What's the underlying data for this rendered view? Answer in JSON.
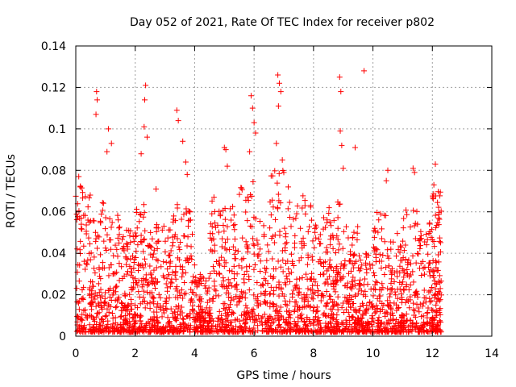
{
  "chart_data": {
    "type": "scatter",
    "title": "Day 052 of 2021, Rate Of TEC Index for receiver p802",
    "xlabel": "GPS time / hours",
    "ylabel": "ROTI / TECUs",
    "xlim": [
      0,
      14
    ],
    "ylim": [
      0,
      0.14
    ],
    "xticks": [
      "0",
      "2",
      "4",
      "6",
      "8",
      "10",
      "12",
      "14"
    ],
    "yticks": [
      "0",
      "0.02",
      "0.04",
      "0.06",
      "0.08",
      "0.1",
      "0.12",
      "0.14"
    ],
    "grid": true,
    "marker": "+",
    "color": "#ff0000",
    "x_range_data": [
      0,
      12.3
    ],
    "highlights": [
      {
        "x": 0.7,
        "y": 0.118
      },
      {
        "x": 0.72,
        "y": 0.114
      },
      {
        "x": 0.68,
        "y": 0.107
      },
      {
        "x": 1.1,
        "y": 0.1
      },
      {
        "x": 1.05,
        "y": 0.089
      },
      {
        "x": 1.2,
        "y": 0.093
      },
      {
        "x": 2.35,
        "y": 0.121
      },
      {
        "x": 2.32,
        "y": 0.114
      },
      {
        "x": 2.3,
        "y": 0.101
      },
      {
        "x": 2.4,
        "y": 0.096
      },
      {
        "x": 2.2,
        "y": 0.088
      },
      {
        "x": 3.4,
        "y": 0.109
      },
      {
        "x": 3.45,
        "y": 0.104
      },
      {
        "x": 3.6,
        "y": 0.094
      },
      {
        "x": 3.7,
        "y": 0.084
      },
      {
        "x": 3.75,
        "y": 0.078
      },
      {
        "x": 5.0,
        "y": 0.091
      },
      {
        "x": 5.05,
        "y": 0.09
      },
      {
        "x": 5.1,
        "y": 0.082
      },
      {
        "x": 5.9,
        "y": 0.116
      },
      {
        "x": 5.95,
        "y": 0.11
      },
      {
        "x": 6.0,
        "y": 0.103
      },
      {
        "x": 6.05,
        "y": 0.098
      },
      {
        "x": 5.85,
        "y": 0.089
      },
      {
        "x": 6.8,
        "y": 0.126
      },
      {
        "x": 6.85,
        "y": 0.122
      },
      {
        "x": 6.9,
        "y": 0.118
      },
      {
        "x": 6.82,
        "y": 0.111
      },
      {
        "x": 6.75,
        "y": 0.093
      },
      {
        "x": 6.95,
        "y": 0.085
      },
      {
        "x": 7.0,
        "y": 0.079
      },
      {
        "x": 7.15,
        "y": 0.072
      },
      {
        "x": 8.88,
        "y": 0.125
      },
      {
        "x": 8.92,
        "y": 0.118
      },
      {
        "x": 8.9,
        "y": 0.099
      },
      {
        "x": 8.95,
        "y": 0.092
      },
      {
        "x": 9.0,
        "y": 0.081
      },
      {
        "x": 9.4,
        "y": 0.091
      },
      {
        "x": 9.7,
        "y": 0.128
      },
      {
        "x": 10.5,
        "y": 0.08
      },
      {
        "x": 10.45,
        "y": 0.075
      },
      {
        "x": 11.35,
        "y": 0.081
      },
      {
        "x": 11.4,
        "y": 0.079
      },
      {
        "x": 12.1,
        "y": 0.083
      },
      {
        "x": 12.05,
        "y": 0.073
      },
      {
        "x": 0.1,
        "y": 0.077
      },
      {
        "x": 0.15,
        "y": 0.072
      },
      {
        "x": 2.7,
        "y": 0.071
      }
    ],
    "density_profile": [
      {
        "x0": 0.0,
        "x1": 0.5,
        "max": 0.075
      },
      {
        "x0": 0.5,
        "x1": 1.0,
        "max": 0.065
      },
      {
        "x0": 1.0,
        "x1": 1.5,
        "max": 0.06
      },
      {
        "x0": 1.5,
        "x1": 2.0,
        "max": 0.055
      },
      {
        "x0": 2.0,
        "x1": 2.5,
        "max": 0.068
      },
      {
        "x0": 2.5,
        "x1": 3.0,
        "max": 0.055
      },
      {
        "x0": 3.0,
        "x1": 3.5,
        "max": 0.065
      },
      {
        "x0": 3.5,
        "x1": 4.0,
        "max": 0.062
      },
      {
        "x0": 4.0,
        "x1": 4.5,
        "max": 0.03
      },
      {
        "x0": 4.5,
        "x1": 5.0,
        "max": 0.068
      },
      {
        "x0": 5.0,
        "x1": 5.5,
        "max": 0.065
      },
      {
        "x0": 5.5,
        "x1": 6.0,
        "max": 0.075
      },
      {
        "x0": 6.0,
        "x1": 6.5,
        "max": 0.06
      },
      {
        "x0": 6.5,
        "x1": 7.0,
        "max": 0.08
      },
      {
        "x0": 7.0,
        "x1": 7.5,
        "max": 0.065
      },
      {
        "x0": 7.5,
        "x1": 8.0,
        "max": 0.068
      },
      {
        "x0": 8.0,
        "x1": 8.5,
        "max": 0.06
      },
      {
        "x0": 8.5,
        "x1": 9.0,
        "max": 0.065
      },
      {
        "x0": 9.0,
        "x1": 9.5,
        "max": 0.055
      },
      {
        "x0": 9.5,
        "x1": 10.0,
        "max": 0.04
      },
      {
        "x0": 10.0,
        "x1": 10.5,
        "max": 0.065
      },
      {
        "x0": 10.5,
        "x1": 11.0,
        "max": 0.05
      },
      {
        "x0": 11.0,
        "x1": 11.5,
        "max": 0.062
      },
      {
        "x0": 11.5,
        "x1": 12.0,
        "max": 0.055
      },
      {
        "x0": 12.0,
        "x1": 12.3,
        "max": 0.07
      }
    ],
    "bulk_point_count": 2600
  }
}
